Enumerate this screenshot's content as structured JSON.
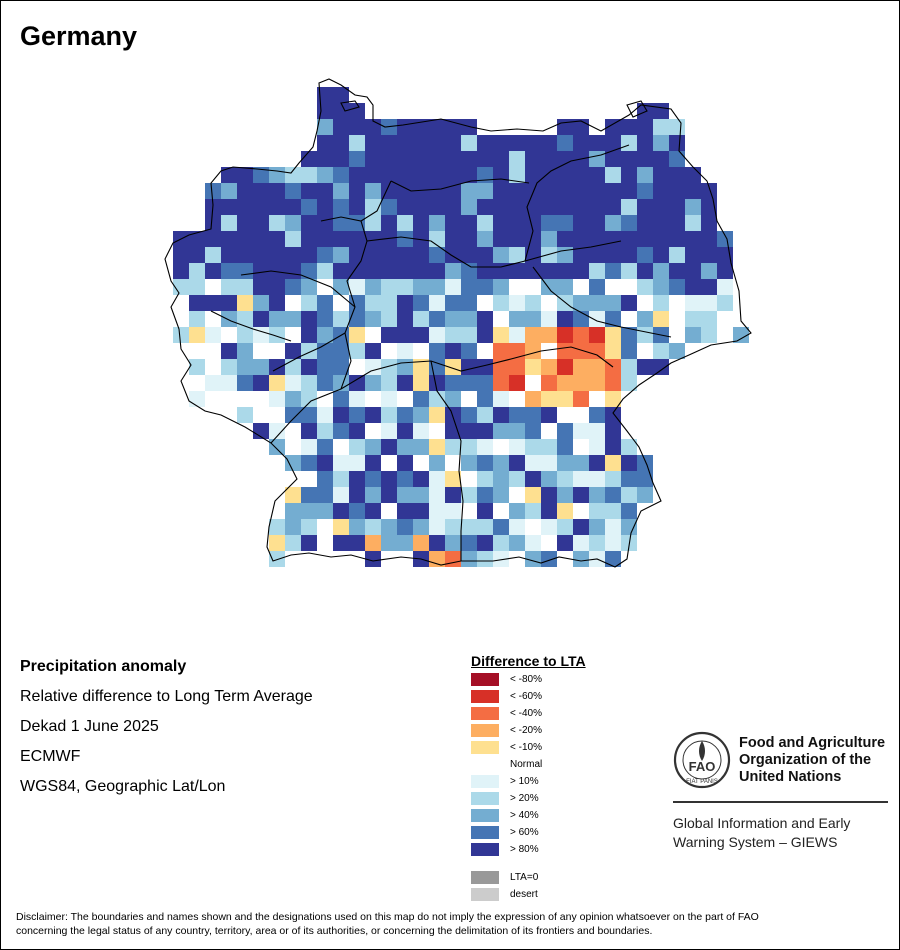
{
  "map": {
    "title": "Germany"
  },
  "info": {
    "heading": "Precipitation anomaly",
    "subtitle": "Relative difference to Long Term Average",
    "period": "Dekad 1 June 2025",
    "source": "ECMWF",
    "projection": "WGS84, Geographic Lat/Lon"
  },
  "legend": {
    "title": "Difference to LTA",
    "classes": [
      {
        "label": "< -80%",
        "color": "#a50f26"
      },
      {
        "label": "< -60%",
        "color": "#d73027"
      },
      {
        "label": "< -40%",
        "color": "#f46d43"
      },
      {
        "label": "< -20%",
        "color": "#fdae61"
      },
      {
        "label": "< -10%",
        "color": "#fee090"
      },
      {
        "label": "Normal",
        "color": "#ffffff"
      },
      {
        "label": "> 10%",
        "color": "#e0f3f8"
      },
      {
        "label": "> 20%",
        "color": "#abd9e9"
      },
      {
        "label": "> 40%",
        "color": "#74add1"
      },
      {
        "label": "> 60%",
        "color": "#4575b4"
      },
      {
        "label": "> 80%",
        "color": "#313695"
      }
    ],
    "extra": [
      {
        "label": "LTA=0",
        "color": "#999999"
      },
      {
        "label": "desert",
        "color": "#cccccc"
      }
    ]
  },
  "organization": {
    "name_line1": "Food and Agriculture",
    "name_line2": "Organization of the",
    "name_line3": "United Nations",
    "system_line1": "Global Information and Early",
    "system_line2": "Warning System – GIEWS",
    "logo_letters": "FAO",
    "logo_motto": "FIAT PANIS"
  },
  "disclaimer": {
    "line1": "Disclaimer: The boundaries and names shown and the designations used on this map do not imply the expression of any opinion whatsoever on the part of FAO",
    "line2": "concerning the legal status of any country, territory, area or of its authorities, or concerning the delimitation of its frontiers and boundaries."
  }
}
